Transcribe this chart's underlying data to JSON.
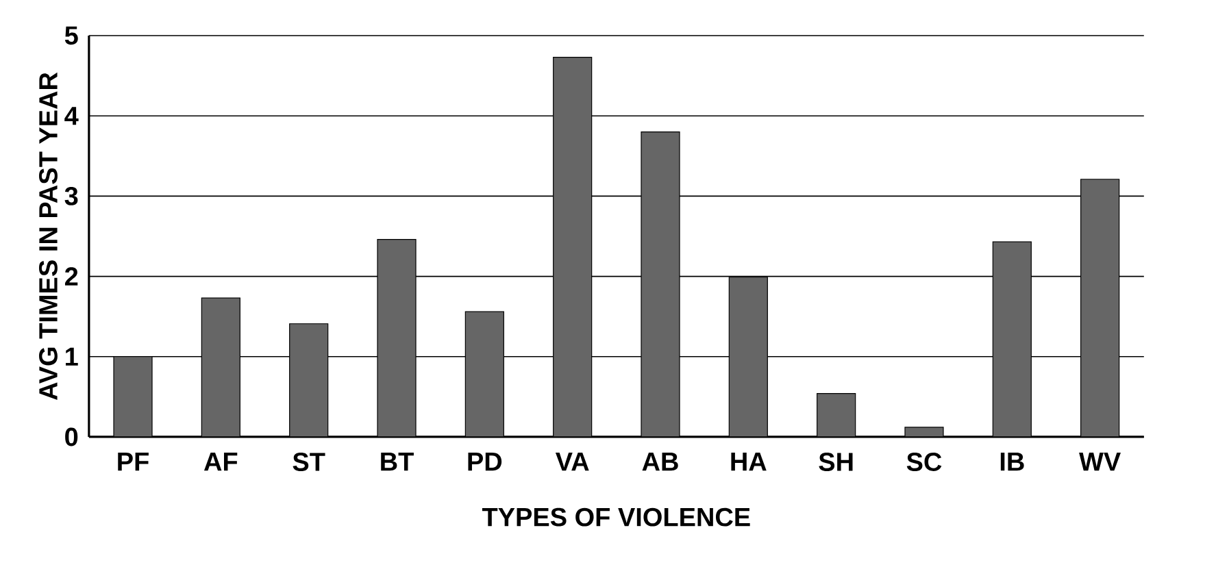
{
  "chart_data": {
    "type": "bar",
    "xlabel": "TYPES OF VIOLENCE",
    "ylabel": "AVG TIMES IN PAST YEAR",
    "categories": [
      "PF",
      "AF",
      "ST",
      "BT",
      "PD",
      "VA",
      "AB",
      "HA",
      "SH",
      "SC",
      "IB",
      "WV"
    ],
    "values": [
      1.0,
      1.73,
      1.41,
      2.46,
      1.56,
      4.73,
      3.8,
      1.99,
      0.54,
      0.12,
      2.43,
      3.21
    ],
    "color": "#666666",
    "ylim": [
      0,
      5
    ],
    "yticks": [
      0,
      1,
      2,
      3,
      4,
      5
    ],
    "grid": "y"
  }
}
